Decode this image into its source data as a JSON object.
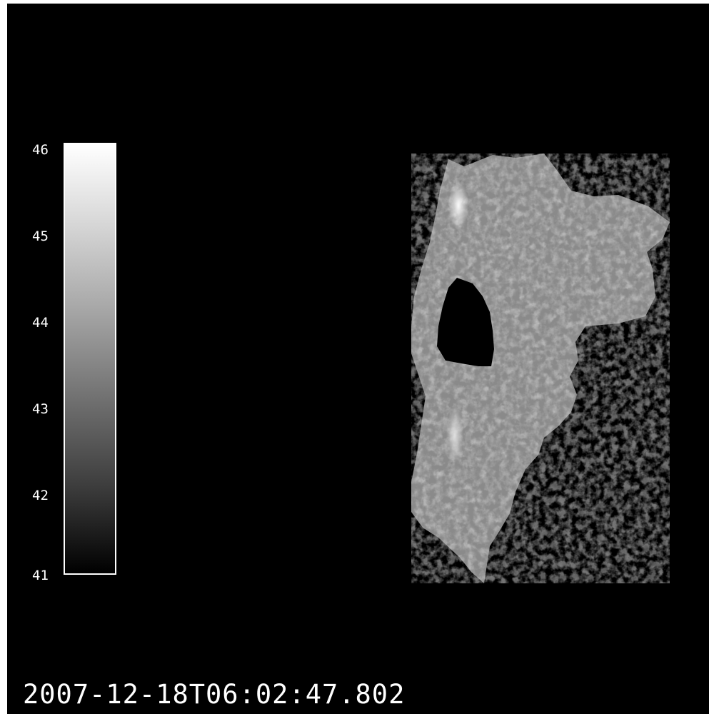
{
  "image": {
    "background": "#000000",
    "colormap": "grayscale",
    "colorbar": {
      "min": 41,
      "max": 46,
      "ticks": [
        "46",
        "45",
        "44",
        "43",
        "42",
        "41"
      ],
      "gradient_top": "#ffffff",
      "gradient_bottom": "#000000"
    },
    "timestamp": "2007-12-18T06:02:47.802"
  }
}
